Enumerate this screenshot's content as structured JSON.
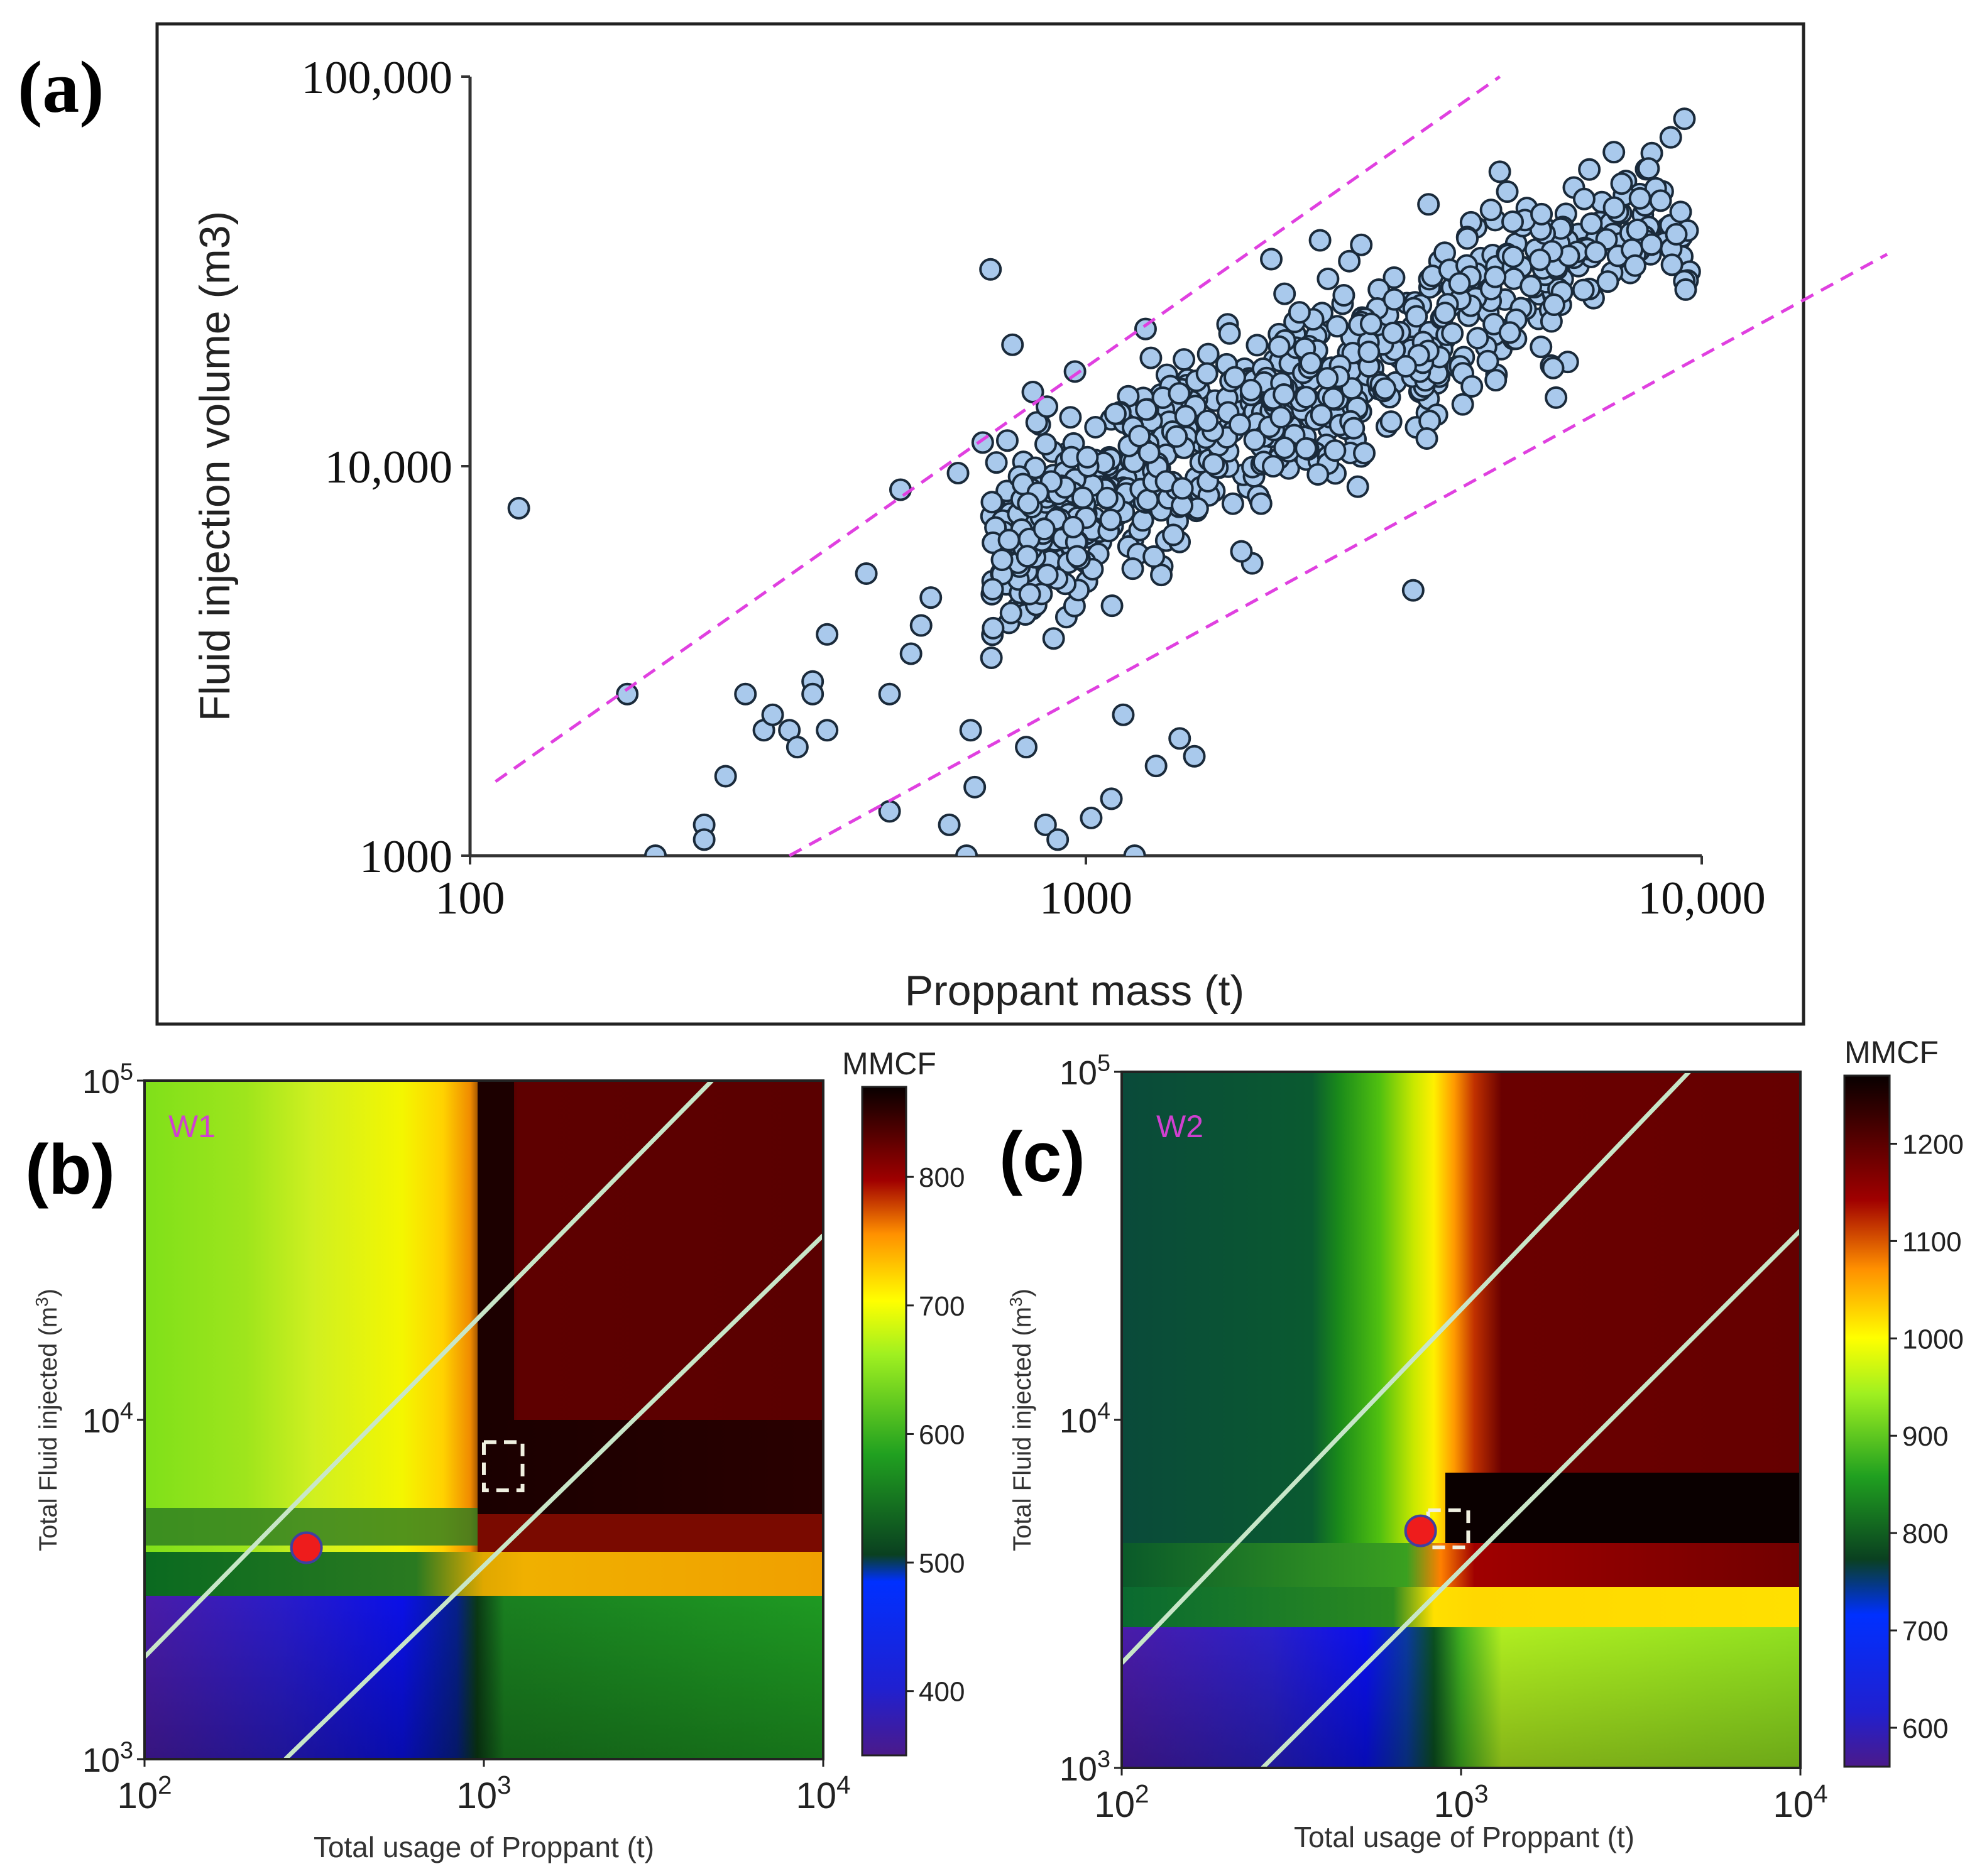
{
  "chart_data": [
    {
      "type": "scatter",
      "panel_label": "(a)",
      "xlabel": "Proppant mass (t)",
      "ylabel": "Fluid injection volume (m3)",
      "xscale": "log",
      "yscale": "log",
      "xlim": [
        100,
        10000
      ],
      "ylim": [
        1000,
        100000
      ],
      "x_ticks": [
        100,
        1000,
        10000
      ],
      "x_tick_labels": [
        "100",
        "1000",
        "10,000"
      ],
      "y_ticks": [
        1000,
        10000,
        100000
      ],
      "y_tick_labels": [
        "1000",
        "10,000",
        "100,000"
      ],
      "point_color": "#a9c9ec",
      "bounds_color": "#e040e0",
      "bound_lines": [
        {
          "name": "upper bound",
          "x": [
            110,
            4700
          ],
          "y": [
            1550,
            100000
          ]
        },
        {
          "name": "lower bound",
          "x": [
            330,
            20000
          ],
          "y": [
            1000,
            35000
          ]
        }
      ],
      "outlier_points": [
        [
          120,
          7800
        ],
        [
          180,
          2600
        ],
        [
          200,
          1000
        ],
        [
          240,
          1200
        ],
        [
          240,
          1100
        ],
        [
          260,
          1600
        ],
        [
          280,
          2600
        ],
        [
          300,
          2100
        ],
        [
          310,
          2300
        ],
        [
          330,
          2100
        ],
        [
          340,
          1900
        ],
        [
          360,
          2800
        ],
        [
          360,
          2600
        ],
        [
          380,
          2100
        ],
        [
          380,
          3700
        ],
        [
          440,
          5300
        ],
        [
          480,
          1300
        ],
        [
          480,
          2600
        ],
        [
          500,
          8700
        ],
        [
          520,
          3300
        ],
        [
          540,
          3900
        ],
        [
          560,
          4600
        ],
        [
          600,
          1200
        ],
        [
          620,
          9600
        ],
        [
          640,
          1000
        ],
        [
          650,
          2100
        ],
        [
          660,
          1500
        ],
        [
          680,
          11500
        ],
        [
          700,
          32000
        ],
        [
          760,
          20500
        ],
        [
          800,
          1900
        ],
        [
          820,
          15500
        ],
        [
          860,
          1200
        ],
        [
          900,
          1100
        ],
        [
          960,
          17500
        ],
        [
          1020,
          1250
        ],
        [
          1100,
          1400
        ],
        [
          1150,
          2300
        ],
        [
          1200,
          1000
        ],
        [
          1250,
          22500
        ],
        [
          1300,
          1700
        ],
        [
          1420,
          2000
        ],
        [
          1500,
          1800
        ],
        [
          2000,
          34000
        ],
        [
          2400,
          38000
        ],
        [
          2800,
          37000
        ],
        [
          3400,
          4800
        ],
        [
          3600,
          47000
        ],
        [
          4300,
          41000
        ],
        [
          4700,
          57000
        ],
        [
          5200,
          46000
        ],
        [
          7200,
          64000
        ],
        [
          8800,
          41000
        ],
        [
          9200,
          38000
        ],
        [
          5800,
          15000
        ]
      ],
      "dense_cloud": {
        "x_range": [
          700,
          9800
        ],
        "trend_slope": 0.8,
        "trend_anchor": [
          1000,
          8000
        ],
        "point_count": 800
      }
    },
    {
      "type": "heatmap",
      "panel_label": "(b)",
      "well": "W1",
      "xlabel": "Total usage of Proppant (t)",
      "ylabel": "Total Fluid injected (m^3)",
      "xscale": "log",
      "yscale": "log",
      "xlim": [
        100,
        10000
      ],
      "ylim": [
        1000,
        100000
      ],
      "x_ticks": [
        100,
        1000,
        10000
      ],
      "y_ticks": [
        1000,
        10000,
        100000
      ],
      "colorbar_title": "MMCF",
      "colorbar_range": [
        350,
        870
      ],
      "colorbar_ticks": [
        400,
        500,
        600,
        700,
        800
      ],
      "current_design": {
        "x": 300,
        "y": 4200
      },
      "optimal_box": {
        "x": [
          1000,
          1300
        ],
        "y": [
          6200,
          8600
        ]
      },
      "bound_lines": [
        {
          "x": [
            100,
            4700
          ],
          "y": [
            2000,
            100000
          ]
        },
        {
          "x": [
            260,
            10000
          ],
          "y": [
            1000,
            35000
          ]
        }
      ]
    },
    {
      "type": "heatmap",
      "panel_label": "(c)",
      "well": "W2",
      "xlabel": "Total usage of Proppant (t)",
      "ylabel": "Total Fluid injected (m^3)",
      "xscale": "log",
      "yscale": "log",
      "xlim": [
        100,
        10000
      ],
      "ylim": [
        1000,
        100000
      ],
      "x_ticks": [
        100,
        1000,
        10000
      ],
      "y_ticks": [
        1000,
        10000,
        100000
      ],
      "colorbar_title": "MMCF",
      "colorbar_range": [
        560,
        1270
      ],
      "colorbar_ticks": [
        600,
        700,
        800,
        900,
        1000,
        1100,
        1200
      ],
      "current_design": {
        "x": 760,
        "y": 4800
      },
      "optimal_box": {
        "x": [
          800,
          1050
        ],
        "y": [
          4300,
          5500
        ]
      },
      "bound_lines": [
        {
          "x": [
            100,
            4700
          ],
          "y": [
            2000,
            100000
          ]
        },
        {
          "x": [
            260,
            10000
          ],
          "y": [
            1000,
            35000
          ]
        }
      ]
    }
  ]
}
